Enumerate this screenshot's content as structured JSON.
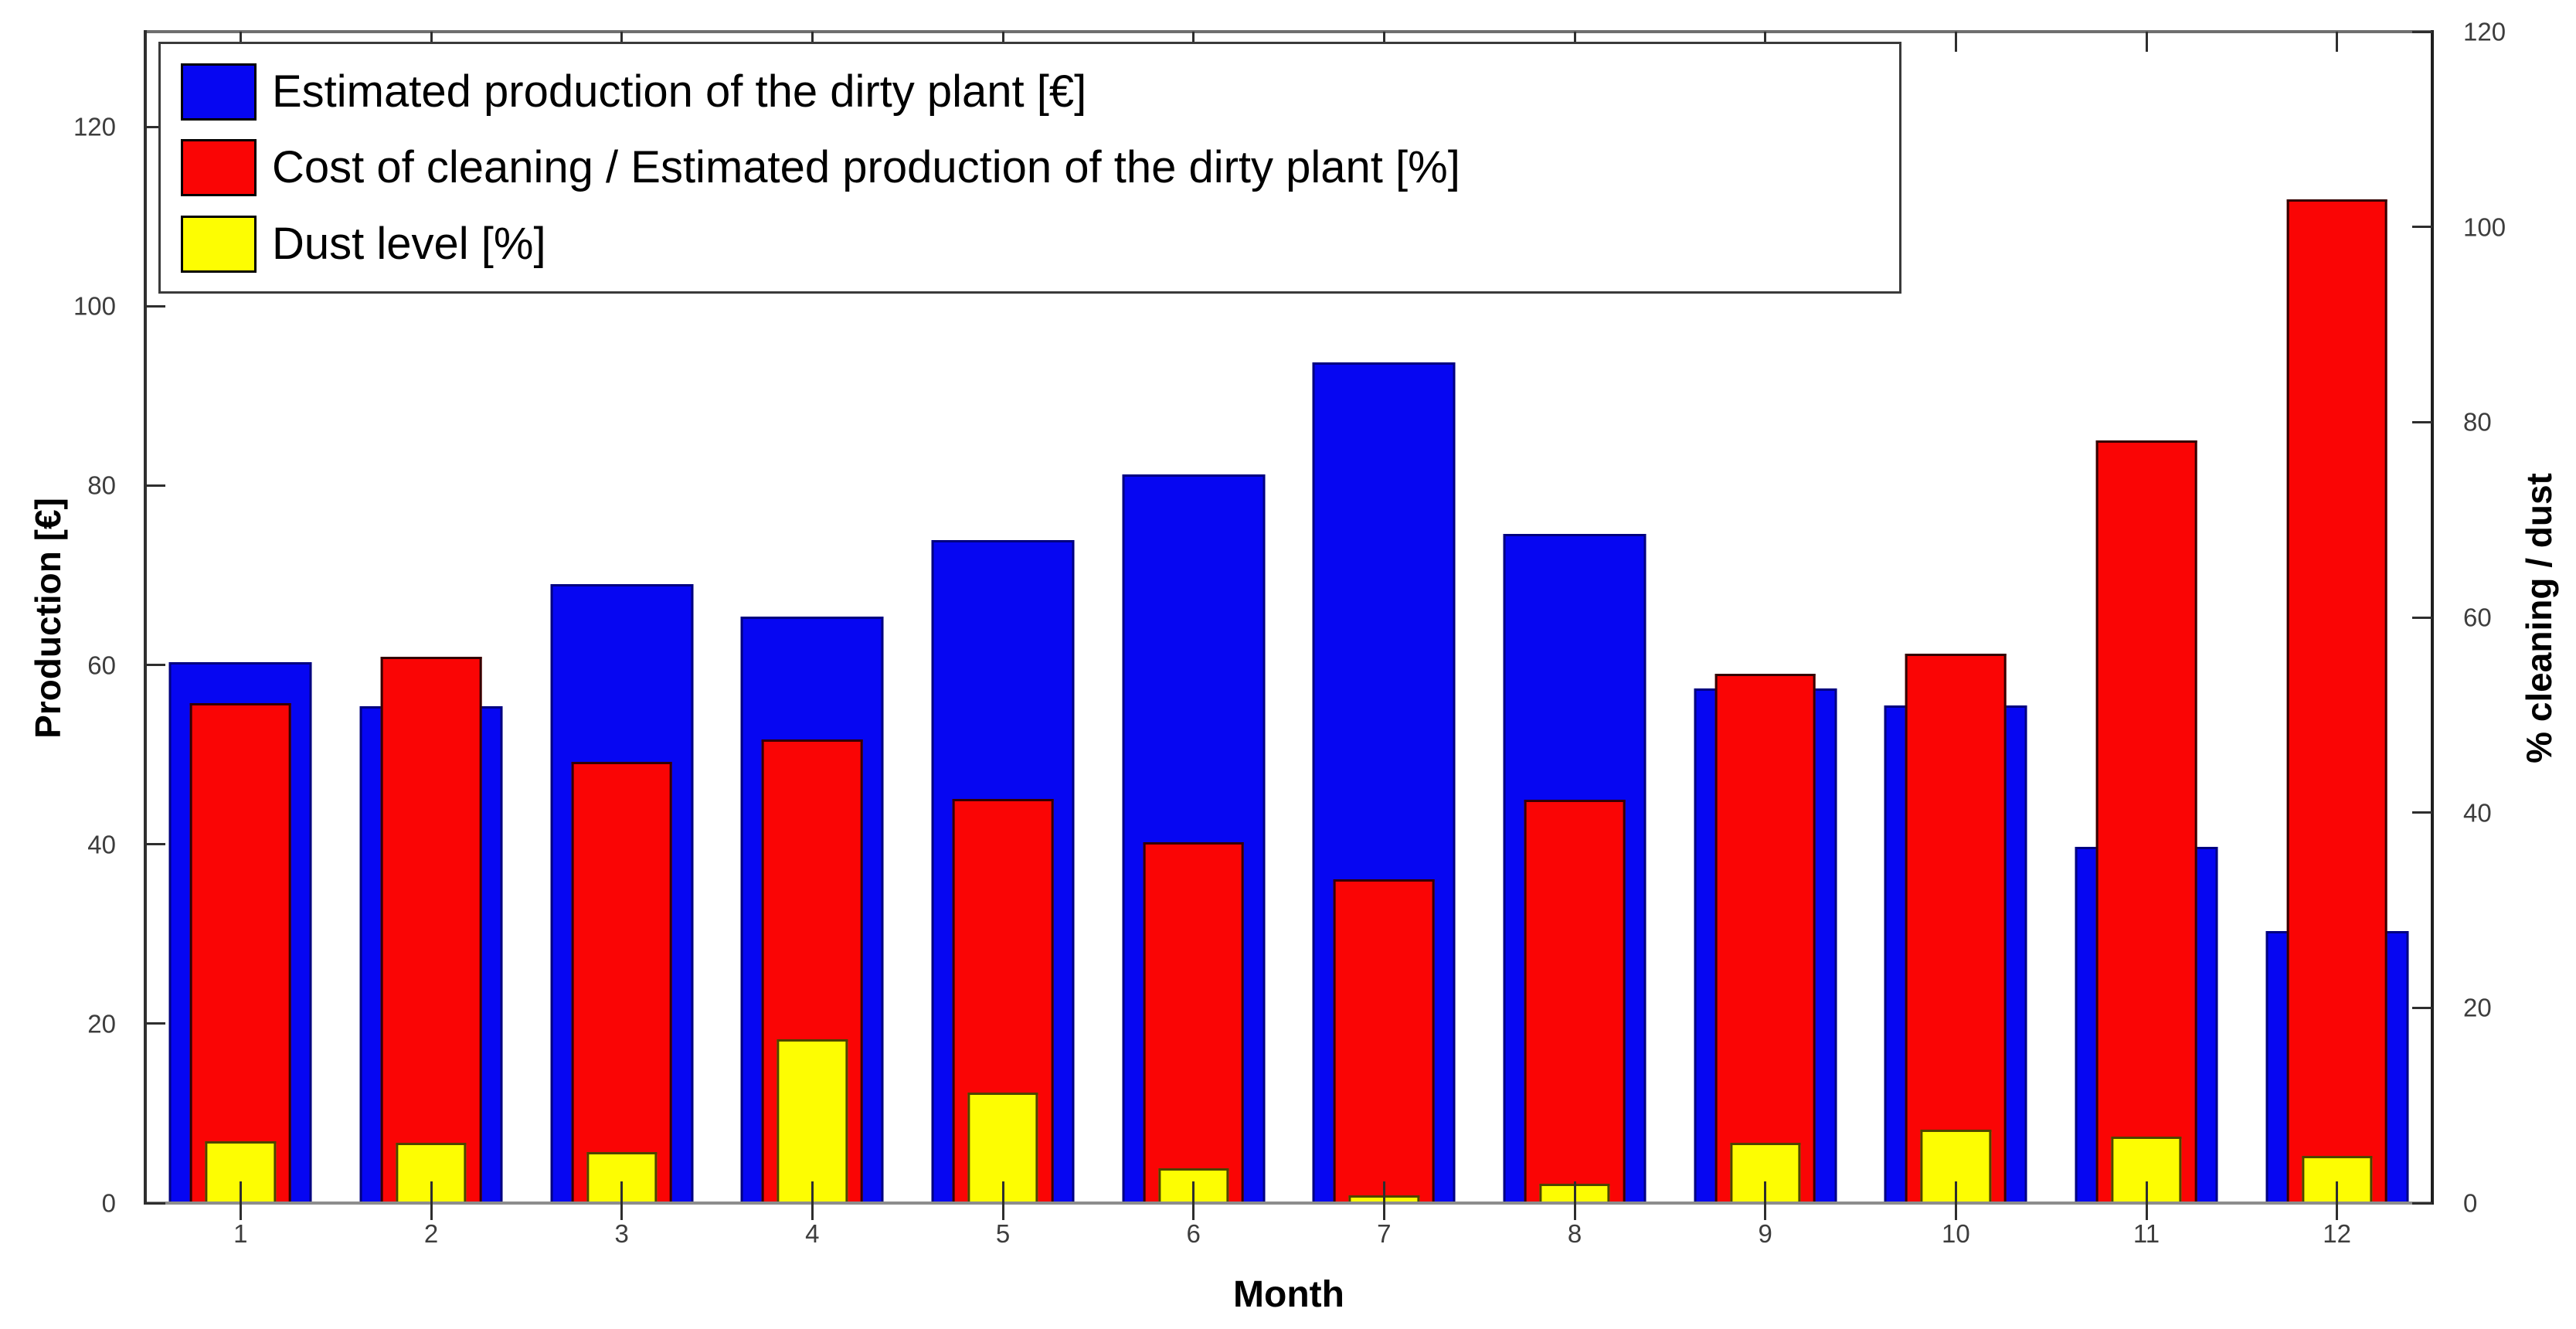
{
  "chart_data": {
    "type": "bar",
    "title": "",
    "xlabel": "Month",
    "ylabel_left": "Production [€]",
    "ylabel_right": "% cleaning / dust",
    "categories": [
      "1",
      "2",
      "3",
      "4",
      "5",
      "6",
      "7",
      "8",
      "9",
      "10",
      "11",
      "12"
    ],
    "left_axis": {
      "ticks": [
        0,
        20,
        40,
        60,
        80,
        100,
        120
      ],
      "max": 130.6
    },
    "right_axis": {
      "ticks": [
        0,
        20,
        40,
        60,
        80,
        100,
        120
      ],
      "max": 120
    },
    "grid": false,
    "legend_position": "top-left",
    "series": [
      {
        "name": "Estimated production of the dirty plant [€]",
        "key": "production",
        "axis": "left",
        "color": "#0606f2",
        "edge_color": "#000080",
        "width_frac": 0.75,
        "values": [
          60.3,
          55.4,
          69.0,
          65.4,
          73.9,
          81.2,
          93.7,
          74.6,
          57.4,
          55.5,
          39.7,
          30.3
        ]
      },
      {
        "name": "Cost of cleaning / Estimated production of the dirty plant [%]",
        "key": "cleaning-cost",
        "axis": "right",
        "color": "#fa0505",
        "edge_color": "#330000",
        "width_frac": 0.53,
        "values": [
          51.2,
          56.0,
          45.2,
          47.5,
          41.4,
          37.0,
          33.2,
          41.3,
          54.2,
          56.3,
          78.1,
          102.8
        ]
      },
      {
        "name": "Dust level [%]",
        "key": "dust-level",
        "axis": "right",
        "color": "#fdfd02",
        "edge_color": "#4d4400",
        "width_frac": 0.37,
        "values": [
          6.3,
          6.2,
          5.2,
          16.8,
          11.3,
          3.6,
          0.8,
          2.0,
          6.2,
          7.5,
          6.8,
          4.8
        ]
      }
    ]
  }
}
